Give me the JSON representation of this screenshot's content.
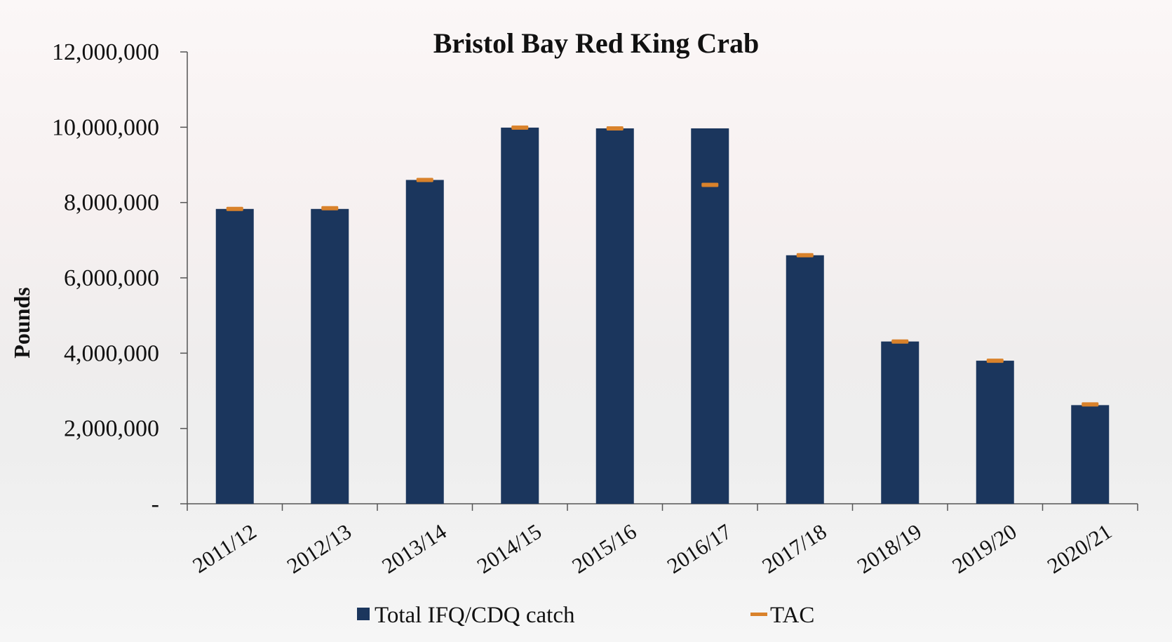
{
  "chart_data": {
    "type": "bar",
    "title": "Bristol Bay Red King Crab",
    "xlabel": "",
    "ylabel": "Pounds",
    "ylim": [
      0,
      12000000
    ],
    "yticks": [
      0,
      2000000,
      4000000,
      6000000,
      8000000,
      10000000,
      12000000
    ],
    "ytick_labels": [
      "-",
      "2,000,000",
      "4,000,000",
      "6,000,000",
      "8,000,000",
      "10,000,000",
      "12,000,000"
    ],
    "categories": [
      "2011/12",
      "2012/13",
      "2013/14",
      "2014/15",
      "2015/16",
      "2016/17",
      "2017/18",
      "2018/19",
      "2019/20",
      "2020/21"
    ],
    "series": [
      {
        "name": "Total IFQ/CDQ catch",
        "type": "bar",
        "color": "#1b365d",
        "values": [
          7830000,
          7830000,
          8600000,
          9990000,
          9970000,
          9970000,
          6600000,
          4310000,
          3800000,
          2620000
        ]
      },
      {
        "name": "TAC",
        "type": "marker",
        "color": "#d9822b",
        "values": [
          7830000,
          7850000,
          8600000,
          9990000,
          9970000,
          8470000,
          6600000,
          4310000,
          3800000,
          2640000
        ]
      }
    ],
    "grid": false,
    "legend": "bottom"
  }
}
